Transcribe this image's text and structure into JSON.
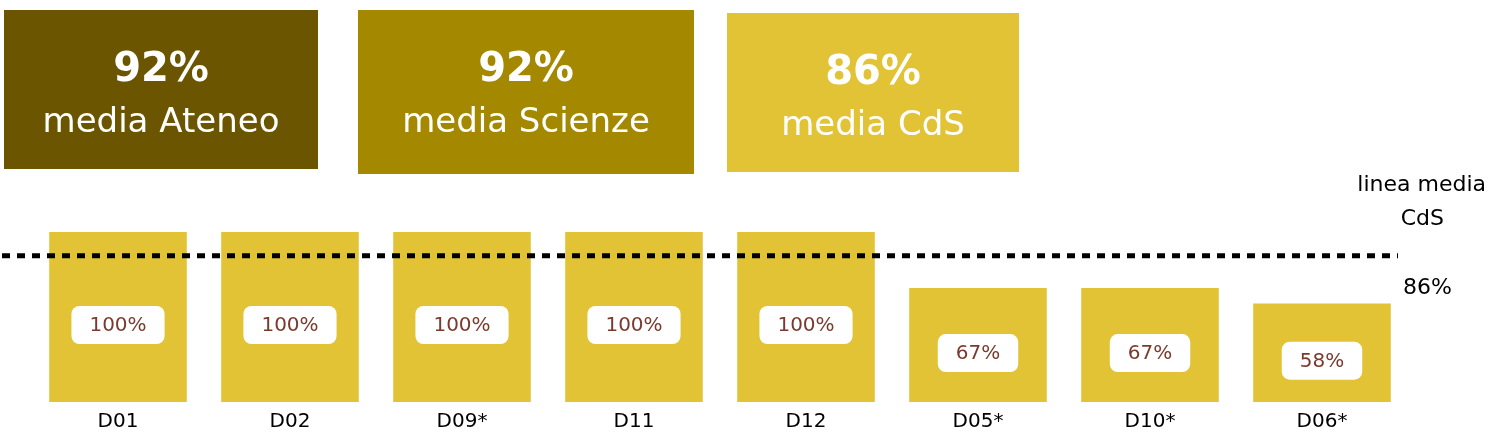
{
  "chart_data": {
    "type": "bar",
    "categories": [
      "D01",
      "D02",
      "D09*",
      "D11",
      "D12",
      "D05*",
      "D10*",
      "D06*"
    ],
    "values": [
      100,
      100,
      100,
      100,
      100,
      67,
      67,
      58
    ],
    "value_labels": [
      "100%",
      "100%",
      "100%",
      "100%",
      "100%",
      "67%",
      "67%",
      "58%"
    ],
    "color": "#e2c335",
    "ylim": [
      0,
      100
    ],
    "tick_labels": "x",
    "grid": false,
    "legend": false,
    "ref_lines": [
      {
        "axis": "y",
        "value": 86,
        "label": "linea media CdS",
        "color": "#000000",
        "line_style": "dotted"
      }
    ],
    "annotations": [
      "92%",
      "media Ateneo",
      "92%",
      "media Scienze",
      "86%",
      "media CdS",
      "86%"
    ]
  }
}
